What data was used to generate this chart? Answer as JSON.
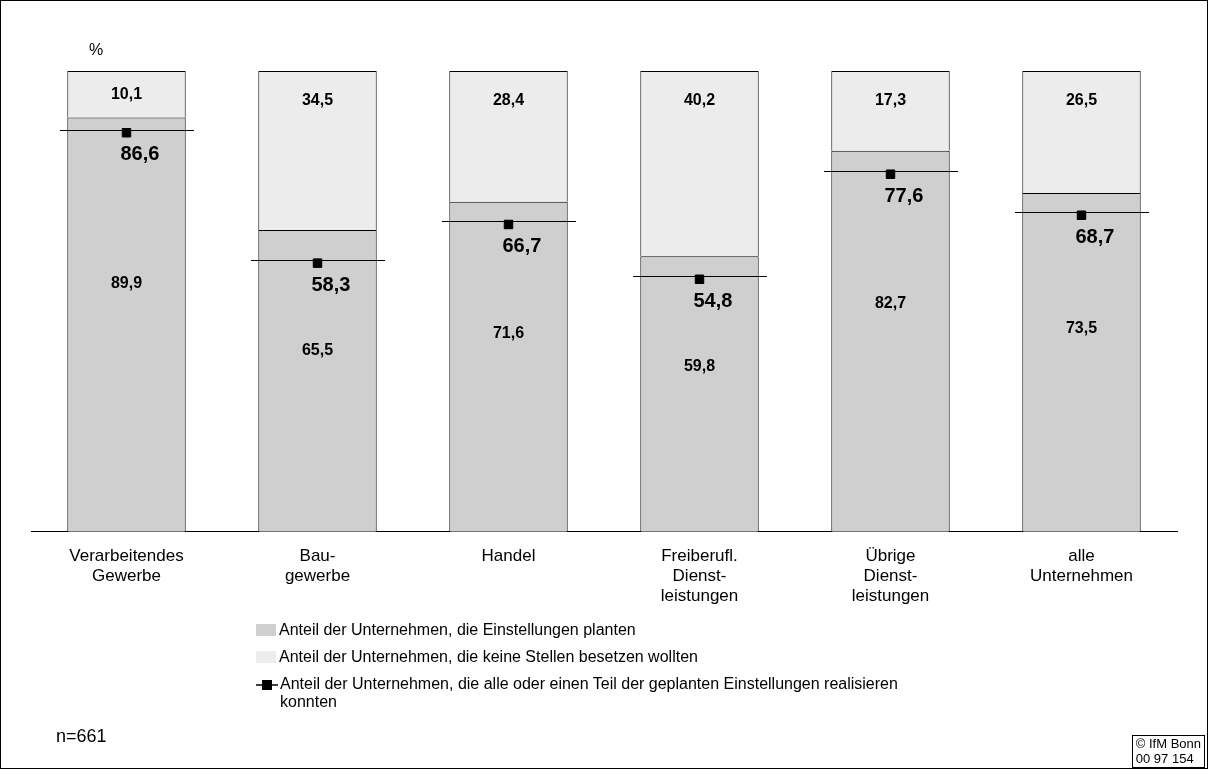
{
  "chart_data": {
    "type": "bar",
    "stacked": true,
    "ylabel": "%",
    "categories": [
      "Verarbeitendes\nGewerbe",
      "Bau-\ngewerbe",
      "Handel",
      "Freiberufl.\nDienst-\nleistungen",
      "Übrige\nDienst-\nleistungen",
      "alle\nUnternehmen"
    ],
    "tick_labels": "x",
    "legend": "bottom",
    "series": [
      {
        "name": "Anteil der Unternehmen, die Einstellungen planten",
        "color": "#cfcfcf",
        "values": [
          89.9,
          65.5,
          71.6,
          59.8,
          82.7,
          73.5
        ],
        "value_labels": [
          "89,9",
          "65,5",
          "71,6",
          "59,8",
          "82,7",
          "73,5"
        ]
      },
      {
        "name": "Anteil der Unternehmen, die keine Stellen besetzen wollten",
        "color": "#ececec",
        "values": [
          10.1,
          34.5,
          28.4,
          40.2,
          17.3,
          26.5
        ],
        "value_labels": [
          "10,1",
          "34,5",
          "28,4",
          "40,2",
          "17,3",
          "26,5"
        ]
      },
      {
        "name": "Anteil der Unternehmen, die alle oder einen Teil der geplanten Einstellungen realisieren konnten",
        "type": "scatter",
        "marker": "square",
        "color": "#000000",
        "x": [
          "Verarbeitendes\nGewerbe",
          "Bau-\ngewerbe",
          "Handel",
          "Freiberufl.\nDienst-\nleistungen",
          "Übrige\nDienst-\nleistungen",
          "alle\nUnternehmen"
        ],
        "values": [
          86.6,
          58.3,
          66.7,
          54.8,
          77.6,
          68.7
        ],
        "value_labels": [
          "86,6",
          "58,3",
          "66,7",
          "54,8",
          "77,6",
          "68,7"
        ]
      }
    ],
    "annotations": [
      "n=661",
      "© IfM Bonn\n00 97 154"
    ]
  }
}
